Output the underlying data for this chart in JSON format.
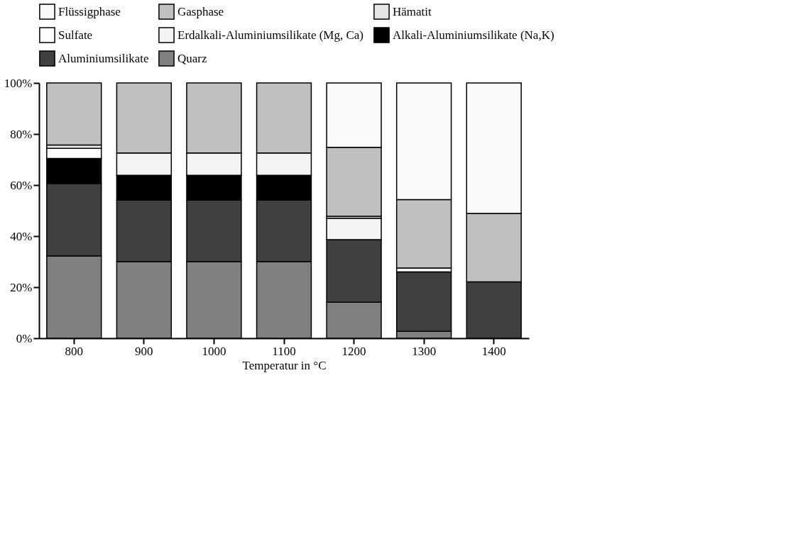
{
  "chart_data": {
    "type": "bar",
    "stacked": true,
    "xlabel": "Temperatur in °C",
    "categories": [
      "800",
      "900",
      "1000",
      "1100",
      "1200",
      "1300",
      "1400"
    ],
    "ylim": [
      0,
      100
    ],
    "yticks": [
      {
        "value": 0,
        "label": "0%"
      },
      {
        "value": 20,
        "label": "20%"
      },
      {
        "value": 40,
        "label": "40%"
      },
      {
        "value": 60,
        "label": "60%"
      },
      {
        "value": 80,
        "label": "80%"
      },
      {
        "value": 100,
        "label": "100%"
      }
    ],
    "legend": "top",
    "grid": false,
    "series": [
      {
        "name": "Quarz",
        "color": "#808080",
        "values": [
          32.2,
          30,
          30,
          30,
          14.1,
          2.7,
          null
        ]
      },
      {
        "name": "Aluminiumsilikate",
        "color": "#404040",
        "values": [
          28.4,
          24.1,
          24.1,
          24.1,
          24.5,
          23.3,
          22.1
        ]
      },
      {
        "name": "Alkali-Aluminiumsilikate (Na,K)",
        "color": "#000000",
        "values": [
          9.8,
          9.7,
          9.7,
          9.7,
          null,
          null,
          null
        ]
      },
      {
        "name": "Erdalkali-Aluminiumsilikate (Mg, Ca)",
        "color": "#f4f4f4",
        "values": [
          null,
          8.8,
          8.8,
          8.8,
          8.4,
          1.5,
          null
        ]
      },
      {
        "name": "Sulfate",
        "color": "#ffffff",
        "values": [
          4.0,
          null,
          null,
          null,
          null,
          null,
          null
        ]
      },
      {
        "name": "Hämatit",
        "color": "#e6e6e6",
        "values": [
          1.3,
          null,
          null,
          null,
          0.8,
          null,
          null
        ]
      },
      {
        "name": "Gasphase",
        "color": "#c0c0c0",
        "values": [
          24.3,
          27.4,
          27.4,
          27.4,
          27.0,
          26.8,
          26.8
        ]
      },
      {
        "name": "Flüssigphase",
        "color": "#fafafa",
        "values": [
          null,
          null,
          null,
          null,
          25.2,
          45.7,
          51.1
        ]
      }
    ]
  }
}
